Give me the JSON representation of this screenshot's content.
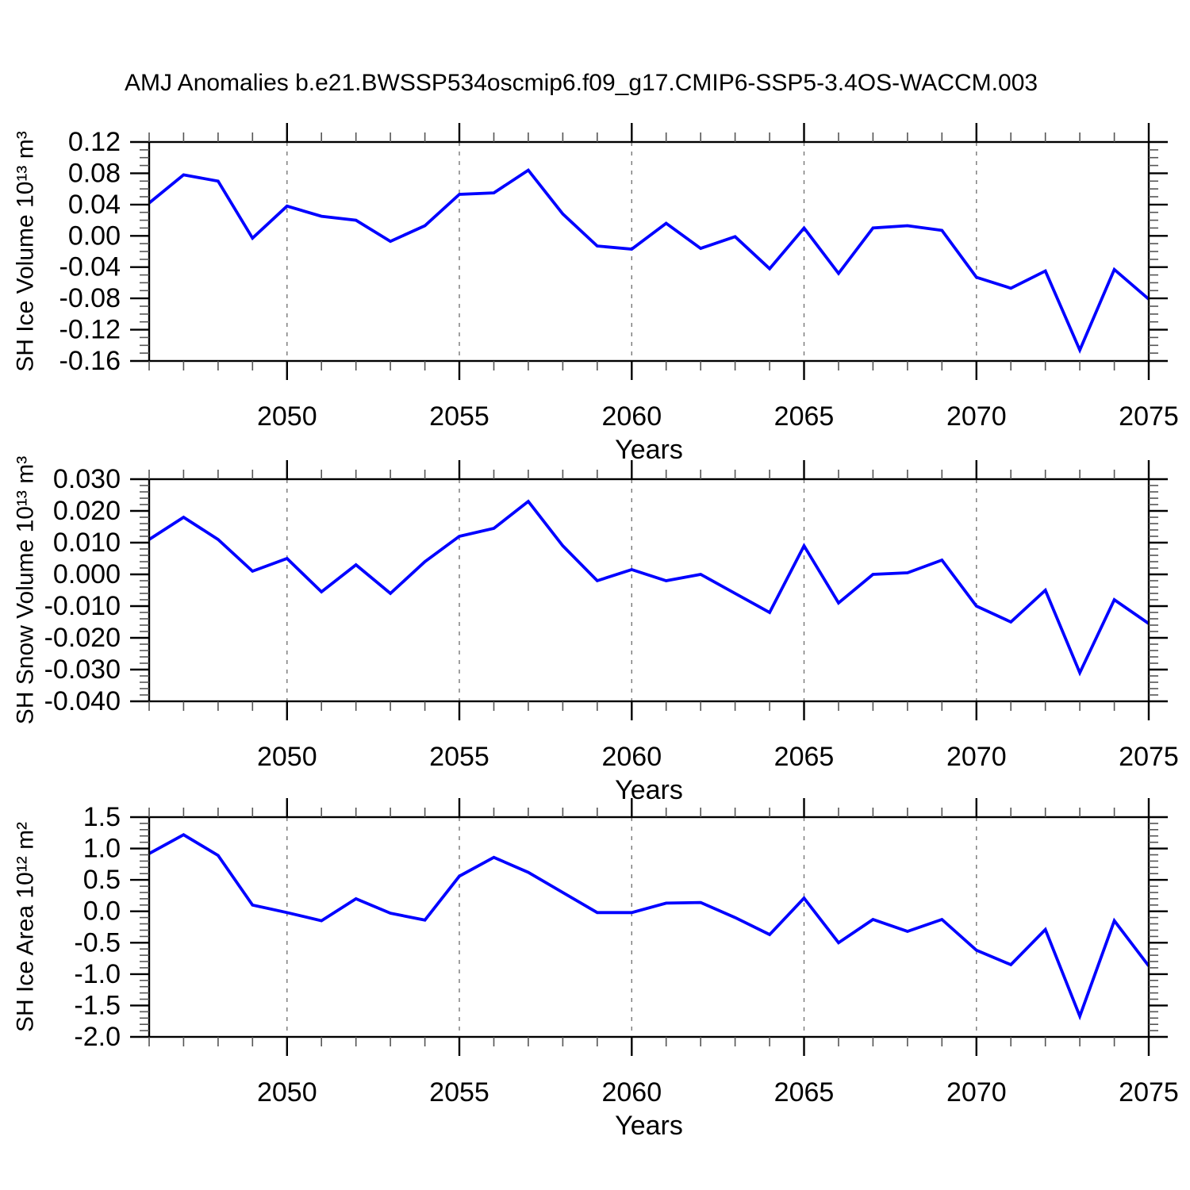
{
  "title": "AMJ Anomalies b.e21.BWSSP534oscmip6.f09_g17.CMIP6-SSP5-3.4OS-WACCM.003",
  "colors": {
    "line": "#0000ff",
    "frame": "#000000",
    "major_tick": "#000000",
    "minor_tick": "#555555",
    "grid": "#777777"
  },
  "chart_data": [
    {
      "type": "line",
      "id": "sh-ice-volume",
      "ylabel": "SH Ice Volume 10¹³ m³",
      "xlabel": "Years",
      "title": "",
      "xlim": [
        2046,
        2075
      ],
      "ylim": [
        -0.16,
        0.12
      ],
      "x_tick_labels": [
        "2050",
        "2055",
        "2060",
        "2065",
        "2070",
        "2075"
      ],
      "x_major_years": [
        2050,
        2055,
        2060,
        2065,
        2070,
        2075
      ],
      "grid_years": [
        2050,
        2055,
        2060,
        2065,
        2070
      ],
      "x_minor_step": 1,
      "y_tick_labels": [
        "0.12",
        "0.08",
        "0.04",
        "0.00",
        "-0.04",
        "-0.08",
        "-0.12",
        "-0.16"
      ],
      "y_minor_step": 0.01,
      "grid": "vertical-dashed-at-major-x",
      "legend": "none",
      "x": [
        2046,
        2047,
        2048,
        2049,
        2050,
        2051,
        2052,
        2053,
        2054,
        2055,
        2056,
        2057,
        2058,
        2059,
        2060,
        2061,
        2062,
        2063,
        2064,
        2065,
        2066,
        2067,
        2068,
        2069,
        2070,
        2071,
        2072,
        2073,
        2074,
        2075
      ],
      "values": [
        0.042,
        0.078,
        0.07,
        -0.003,
        0.038,
        0.025,
        0.02,
        -0.007,
        0.013,
        0.053,
        0.055,
        0.084,
        0.028,
        -0.013,
        -0.017,
        0.016,
        -0.016,
        -0.001,
        -0.042,
        0.01,
        -0.048,
        0.01,
        0.013,
        0.007,
        -0.053,
        -0.067,
        -0.045,
        -0.146,
        -0.043,
        -0.081
      ]
    },
    {
      "type": "line",
      "id": "sh-snow-volume",
      "ylabel": "SH Snow Volume 10¹³ m³",
      "xlabel": "Years",
      "title": "",
      "xlim": [
        2046,
        2075
      ],
      "ylim": [
        -0.04,
        0.03
      ],
      "x_tick_labels": [
        "2050",
        "2055",
        "2060",
        "2065",
        "2070",
        "2075"
      ],
      "x_major_years": [
        2050,
        2055,
        2060,
        2065,
        2070,
        2075
      ],
      "grid_years": [
        2050,
        2055,
        2060,
        2065,
        2070
      ],
      "x_minor_step": 1,
      "y_tick_labels": [
        "0.030",
        "0.020",
        "0.010",
        "0.000",
        "-0.010",
        "-0.020",
        "-0.030",
        "-0.040"
      ],
      "y_minor_step": 0.002,
      "grid": "vertical-dashed-at-major-x",
      "legend": "none",
      "x": [
        2046,
        2047,
        2048,
        2049,
        2050,
        2051,
        2052,
        2053,
        2054,
        2055,
        2056,
        2057,
        2058,
        2059,
        2060,
        2061,
        2062,
        2063,
        2064,
        2065,
        2066,
        2067,
        2068,
        2069,
        2070,
        2071,
        2072,
        2073,
        2074,
        2075
      ],
      "values": [
        0.011,
        0.018,
        0.011,
        0.001,
        0.005,
        -0.0055,
        0.003,
        -0.006,
        0.004,
        0.012,
        0.0145,
        0.023,
        0.009,
        -0.002,
        0.0015,
        -0.002,
        0.0,
        -0.006,
        -0.012,
        0.009,
        -0.009,
        0.0,
        0.0005,
        0.0045,
        -0.01,
        -0.015,
        -0.005,
        -0.031,
        -0.008,
        -0.0155
      ]
    },
    {
      "type": "line",
      "id": "sh-ice-area",
      "ylabel": "SH Ice Area 10¹² m²",
      "xlabel": "Years",
      "title": "",
      "xlim": [
        2046,
        2075
      ],
      "ylim": [
        -2.0,
        1.5
      ],
      "x_tick_labels": [
        "2050",
        "2055",
        "2060",
        "2065",
        "2070",
        "2075"
      ],
      "x_major_years": [
        2050,
        2055,
        2060,
        2065,
        2070,
        2075
      ],
      "grid_years": [
        2050,
        2055,
        2060,
        2065,
        2070
      ],
      "x_minor_step": 1,
      "y_tick_labels": [
        "1.5",
        "1.0",
        "0.5",
        "0.0",
        "-0.5",
        "-1.0",
        "-1.5",
        "-2.0"
      ],
      "y_minor_step": 0.1,
      "grid": "vertical-dashed-at-major-x",
      "legend": "none",
      "x": [
        2046,
        2047,
        2048,
        2049,
        2050,
        2051,
        2052,
        2053,
        2054,
        2055,
        2056,
        2057,
        2058,
        2059,
        2060,
        2061,
        2062,
        2063,
        2064,
        2065,
        2066,
        2067,
        2068,
        2069,
        2070,
        2071,
        2072,
        2073,
        2074,
        2075
      ],
      "values": [
        0.92,
        1.22,
        0.89,
        0.1,
        -0.02,
        -0.15,
        0.2,
        -0.03,
        -0.14,
        0.56,
        0.86,
        0.62,
        0.3,
        -0.02,
        -0.02,
        0.13,
        0.14,
        -0.1,
        -0.37,
        0.21,
        -0.5,
        -0.13,
        -0.32,
        -0.13,
        -0.62,
        -0.85,
        -0.29,
        -1.67,
        -0.15,
        -0.87
      ]
    }
  ]
}
